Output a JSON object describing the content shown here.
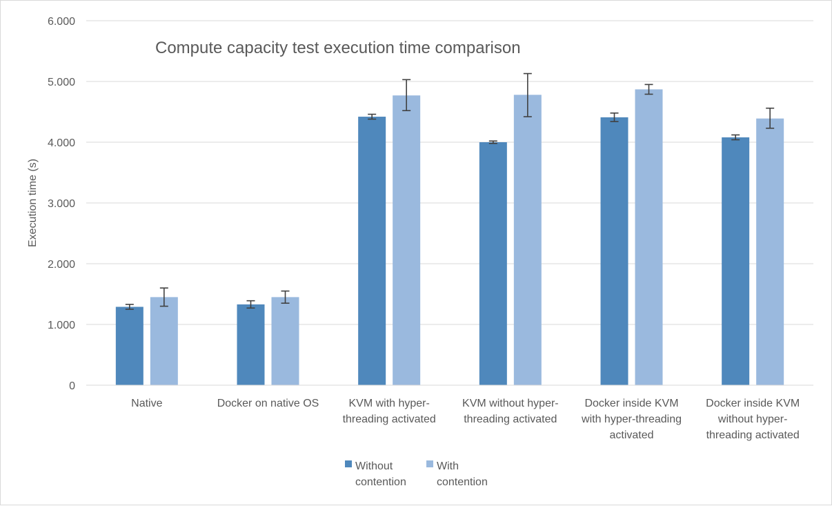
{
  "chart_data": {
    "type": "bar",
    "title": "Compute capacity test execution time comparison",
    "ylabel": "Execution time (s)",
    "xlabel": "",
    "ylim": [
      0,
      6000
    ],
    "yticks": [
      0,
      1000,
      2000,
      3000,
      4000,
      5000,
      6000
    ],
    "ytick_labels": [
      "0",
      "1.000",
      "2.000",
      "3.000",
      "4.000",
      "5.000",
      "6.000"
    ],
    "grid": true,
    "legend_position": "bottom",
    "categories": [
      [
        "Native"
      ],
      [
        "Docker on native OS"
      ],
      [
        "KVM with hyper-",
        "threading activated"
      ],
      [
        "KVM without hyper-",
        "threading activated"
      ],
      [
        "Docker inside KVM",
        "with hyper-threading",
        "activated"
      ],
      [
        "Docker inside KVM",
        "without hyper-",
        "threading activated"
      ]
    ],
    "series": [
      {
        "name": [
          "Without",
          "contention"
        ],
        "color": "#4f88bc",
        "values": [
          1290,
          1330,
          4420,
          4000,
          4410,
          4080
        ],
        "error_low": [
          40,
          60,
          40,
          20,
          70,
          40
        ],
        "error_high": [
          40,
          60,
          40,
          20,
          70,
          40
        ]
      },
      {
        "name": [
          "With",
          "contention"
        ],
        "color": "#9ab9de",
        "values": [
          1450,
          1450,
          4770,
          4780,
          4870,
          4390
        ],
        "error_low": [
          150,
          100,
          250,
          360,
          80,
          160
        ],
        "error_high": [
          150,
          100,
          260,
          350,
          80,
          170
        ]
      }
    ]
  }
}
